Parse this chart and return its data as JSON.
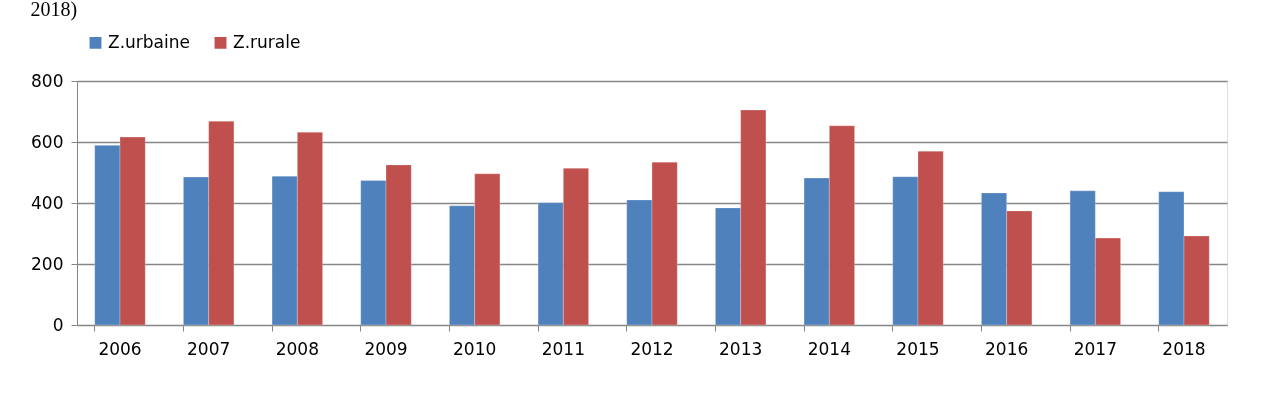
{
  "chart_data": {
    "type": "bar",
    "annotations": [
      "2018)"
    ],
    "categories": [
      "2006",
      "2007",
      "2008",
      "2009",
      "2010",
      "2011",
      "2012",
      "2013",
      "2014",
      "2015",
      "2016",
      "2017",
      "2018"
    ],
    "series": [
      {
        "name": "Z.urbaine",
        "color": "#4f81bd",
        "values": [
          589,
          485,
          488,
          474,
          391,
          401,
          410,
          384,
          482,
          486,
          433,
          440,
          437
        ]
      },
      {
        "name": "Z.rurale",
        "color": "#c0504d",
        "values": [
          616,
          668,
          632,
          525,
          496,
          514,
          534,
          705,
          653,
          570,
          374,
          285,
          292
        ]
      }
    ],
    "ylim": [
      0,
      800
    ],
    "yticks": [
      0,
      200,
      400,
      600,
      800
    ],
    "grid": "y",
    "legend": "top"
  }
}
